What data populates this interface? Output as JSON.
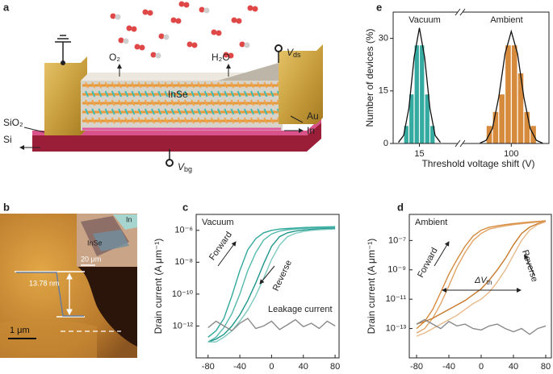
{
  "panels": {
    "a": "a",
    "b": "b",
    "c": "c",
    "d": "d",
    "e": "e"
  },
  "schematic": {
    "o2": "O₂",
    "h2o": "H₂O",
    "channel": "InSe",
    "au": "Au",
    "in": "In",
    "sio2": "SiO₂",
    "si": "Si",
    "vds": {
      "symbol": "V",
      "subscript": "ds"
    },
    "vbg": {
      "symbol": "V",
      "subscript": "bg"
    }
  },
  "afm": {
    "height": "13.78 nm",
    "scale": "1 μm",
    "inset_scale": "20 μm",
    "inset_in": "In",
    "inset_inse": "InSe"
  },
  "chart_data": [
    {
      "type": "line",
      "log_y": true,
      "xlabel": "Gate voltage (V)",
      "ylabel": "Drain current (A μm⁻¹)",
      "annotations": [
        "Vacuum",
        "Forward",
        "Reverse",
        "Leakage current"
      ],
      "x": [
        -80,
        -70,
        -60,
        -50,
        -40,
        -30,
        -20,
        -10,
        0,
        10,
        20,
        30,
        40,
        50,
        60,
        70,
        80
      ],
      "xlim": [
        -95,
        85
      ],
      "xticks": [
        -80,
        -40,
        0,
        40,
        80
      ],
      "ylim": [
        1e-14,
        1e-05
      ],
      "yticks": [
        {
          "value": 1e-12,
          "label": "10⁻¹²"
        },
        {
          "value": 1e-10,
          "label": "10⁻¹⁰"
        },
        {
          "value": 1e-08,
          "label": "10⁻⁸"
        },
        {
          "value": 1e-06,
          "label": "10⁻⁶"
        }
      ],
      "series": [
        {
          "color": "#2fa79c",
          "values": [
            2e-13,
            5e-13,
            3e-12,
            8e-11,
            3e-09,
            6e-08,
            3e-07,
            7e-07,
            1e-06,
            1.2e-06,
            1.3e-06,
            1.4e-06,
            1.5e-06,
            1.55e-06,
            1.6e-06,
            1.65e-06,
            1.7e-06
          ]
        },
        {
          "color": "#52b8ac",
          "values": [
            1e-13,
            2e-13,
            8e-13,
            6e-12,
            1e-10,
            3e-09,
            4e-08,
            2.5e-07,
            6e-07,
            9e-07,
            1.1e-06,
            1.2e-06,
            1.3e-06,
            1.4e-06,
            1.45e-06,
            1.5e-06,
            1.55e-06
          ]
        },
        {
          "color": "#1f968b",
          "values": [
            1e-13,
            1.5e-13,
            3e-13,
            1e-12,
            5e-12,
            4e-11,
            5e-10,
            8e-09,
            1e-07,
            4e-07,
            7e-07,
            9e-07,
            1.05e-06,
            1.15e-06,
            1.25e-06,
            1.3e-06,
            1.35e-06
          ]
        },
        {
          "color": "#7cc9bf",
          "values": [
            1e-13,
            1e-13,
            2e-13,
            5e-13,
            2e-12,
            1e-11,
            8e-11,
            1e-09,
            1.5e-08,
            1.2e-07,
            4e-07,
            6.5e-07,
            8.5e-07,
            1e-06,
            1.1e-06,
            1.15e-06,
            1.2e-06
          ]
        },
        {
          "color": "#8a8a8a",
          "values": [
            8e-13,
            2e-12,
            1e-12,
            5e-13,
            1.5e-12,
            3e-12,
            7e-13,
            1e-12,
            2e-12,
            6e-13,
            1.2e-12,
            2.5e-12,
            9e-13,
            1.5e-12,
            7e-13,
            2e-12,
            1e-12
          ]
        }
      ]
    },
    {
      "type": "line",
      "log_y": true,
      "xlabel": "Gate voltage (V)",
      "ylabel": "Drain current (A μm⁻¹)",
      "annotations": [
        "Ambient",
        "Forward",
        "Reverse"
      ],
      "delta": {
        "text": "ΔV",
        "subscript": "th"
      },
      "x": [
        -80,
        -70,
        -60,
        -50,
        -40,
        -30,
        -20,
        -10,
        0,
        10,
        20,
        30,
        40,
        50,
        60,
        70,
        80
      ],
      "xlim": [
        -89,
        87
      ],
      "xticks": [
        -80,
        -40,
        0,
        40,
        80
      ],
      "ylim": [
        1e-15,
        6e-06
      ],
      "yticks": [
        {
          "value": 1e-13,
          "label": "10⁻¹³"
        },
        {
          "value": 1e-11,
          "label": "10⁻¹¹"
        },
        {
          "value": 1e-09,
          "label": "10⁻⁹"
        },
        {
          "value": 1e-07,
          "label": "10⁻⁷"
        }
      ],
      "series": [
        {
          "color": "#d68a3c",
          "values": [
            1e-13,
            3e-13,
            2e-12,
            3e-11,
            5e-10,
            5e-09,
            4e-08,
            2e-07,
            5e-07,
            8e-07,
            1e-06,
            1.2e-06,
            1.4e-06,
            1.6e-06,
            1.8e-06,
            2e-06,
            2.2e-06
          ]
        },
        {
          "color": "#e2a466",
          "values": [
            5e-14,
            1e-13,
            5e-13,
            5e-12,
            8e-11,
            1.5e-09,
            1.5e-08,
            1e-07,
            3e-07,
            6e-07,
            8e-07,
            1e-06,
            1.2e-06,
            1.4e-06,
            1.6e-06,
            1.8e-06,
            2e-06
          ]
        },
        {
          "color": "#c7782b",
          "values": [
            2e-13,
            3e-13,
            5e-13,
            1e-12,
            2e-12,
            4e-12,
            8e-12,
            2e-11,
            5e-11,
            2e-10,
            1e-09,
            6e-09,
            5e-08,
            3e-07,
            8e-07,
            1.4e-06,
            2e-06
          ]
        },
        {
          "color": "#e8b98a",
          "values": [
            3e-14,
            5e-14,
            1e-13,
            2e-13,
            4e-13,
            8e-13,
            2e-12,
            5e-12,
            1e-11,
            3e-11,
            1.5e-10,
            1e-09,
            1e-08,
            1e-07,
            5e-07,
            1.2e-06,
            1.9e-06
          ]
        },
        {
          "color": "#8a8a8a",
          "values": [
            2e-13,
            4e-13,
            2e-13,
            1e-13,
            3e-13,
            1.5e-13,
            2e-13,
            1e-13,
            8e-14,
            1.5e-13,
            2e-13,
            1e-13,
            6e-14,
            1e-13,
            4e-14,
            1e-13,
            1.5e-13
          ]
        }
      ]
    },
    {
      "type": "histogram",
      "broken_x": true,
      "xlabel": "Threshold voltage shift (V)",
      "ylabel": "Number of devices (%)",
      "xlim": [
        [
          10,
          22
        ],
        [
          85,
          112
        ]
      ],
      "xticks": [
        15,
        100
      ],
      "ylim": [
        0,
        37.5
      ],
      "yticks": [
        0,
        15,
        30
      ],
      "series": [
        {
          "name": "Vacuum",
          "color": "#35aaa0",
          "bins": [
            12,
            13,
            14,
            15,
            16,
            17,
            18
          ],
          "values": [
            5,
            14,
            28,
            28,
            14,
            5
          ],
          "fit": {
            "x": [
              11,
              12,
              13,
              14,
              15,
              16,
              17,
              18,
              19
            ],
            "values": [
              0.3,
              2.3,
              10.1,
              24.6,
              33,
              24.6,
              10.1,
              2.3,
              0.3
            ]
          }
        },
        {
          "name": "Ambient",
          "color": "#d68a3c",
          "bins": [
            92,
            94,
            96,
            98,
            100,
            102,
            104,
            106,
            108
          ],
          "values": [
            5,
            9,
            14,
            28,
            28,
            20,
            9,
            5
          ],
          "fit": {
            "x": [
              90,
              92,
              94,
              96,
              98,
              100,
              102,
              104,
              106,
              108,
              110
            ],
            "values": [
              0.1,
              0.9,
              4.3,
              13.2,
              25.6,
              32,
              25.6,
              13.2,
              4.3,
              0.9,
              0.1
            ]
          }
        }
      ]
    }
  ]
}
